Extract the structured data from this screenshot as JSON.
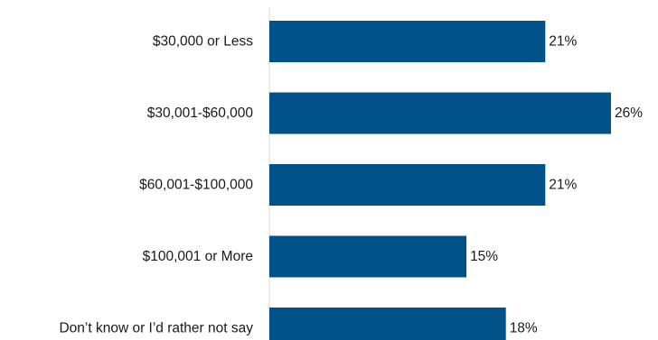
{
  "chart_data": {
    "type": "bar",
    "orientation": "horizontal",
    "categories": [
      "$30,000 or Less",
      "$30,001-$60,000",
      "$60,001-$100,000",
      "$100,001 or More",
      "Don’t know or I’d rather not say"
    ],
    "values": [
      21,
      26,
      21,
      15,
      18
    ],
    "value_labels": [
      "21%",
      "26%",
      "21%",
      "15%",
      "18%"
    ],
    "unit": "%",
    "xlim": [
      0,
      27
    ],
    "grid": false,
    "legend": "none",
    "colors": {
      "bar": "#005288",
      "axis": "#d9d9d9",
      "text": "#1a1a1a"
    }
  }
}
